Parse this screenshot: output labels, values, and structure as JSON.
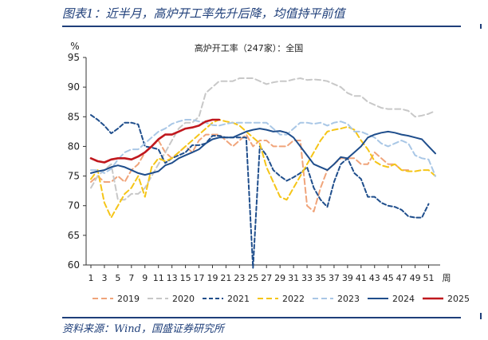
{
  "figure": {
    "title": "图表1：近半月，高炉开工率先升后降，均值持平前值",
    "source": "资料来源：Wind，国盛证券研究所"
  },
  "chart_data": {
    "type": "line",
    "title": "高炉开工率（247家）：全国",
    "ylabel": "%",
    "xlabel": "周",
    "ylim": [
      60,
      95
    ],
    "yticks": [
      60,
      65,
      70,
      75,
      80,
      85,
      90,
      95
    ],
    "xlim": [
      1,
      52
    ],
    "xticks": [
      1,
      3,
      5,
      7,
      9,
      11,
      13,
      15,
      17,
      19,
      21,
      23,
      25,
      27,
      29,
      31,
      33,
      35,
      37,
      39,
      41,
      43,
      45,
      47,
      49,
      51
    ],
    "grid": false,
    "legend": "bottom",
    "series": [
      {
        "name": "2019",
        "color": "#f0a47a",
        "dash": "7,4",
        "values": [
          74,
          75,
          74,
          74,
          75,
          74,
          76,
          77,
          79,
          80,
          81,
          79,
          78,
          79,
          80,
          79,
          81,
          82,
          82,
          82,
          81,
          80,
          81,
          82,
          80,
          81,
          81,
          80,
          80,
          80,
          81,
          81,
          70,
          69,
          73,
          76,
          77,
          78,
          78,
          78,
          77,
          77,
          79,
          78,
          77,
          77,
          76,
          76,
          null,
          null,
          null,
          null
        ]
      },
      {
        "name": "2020",
        "color": "#c8c8c8",
        "dash": "7,4",
        "values": [
          73,
          75,
          76,
          77,
          71,
          71,
          72,
          72,
          73,
          75,
          77,
          79,
          81,
          83,
          84,
          84,
          85,
          89,
          90,
          91,
          91,
          91,
          91.5,
          91.5,
          91.5,
          91,
          90.5,
          90.8,
          91,
          91,
          91.3,
          91.5,
          91.2,
          91.3,
          91.2,
          91,
          90.5,
          90,
          89,
          88.5,
          88.5,
          87.5,
          87,
          86.5,
          86.3,
          86.3,
          86.3,
          86,
          85,
          85.2,
          85.5,
          86
        ]
      },
      {
        "name": "2021",
        "color": "#1f4e8c",
        "dash": "5,3",
        "values": [
          85.3,
          84.5,
          83.5,
          82.2,
          83,
          84,
          84,
          83.7,
          80,
          79.8,
          79.5,
          77.2,
          78,
          78.5,
          79,
          80.2,
          80.2,
          80.5,
          81.8,
          81.8,
          81.5,
          81.5,
          81.5,
          81.5,
          59.5,
          80,
          78.5,
          76,
          75,
          74.2,
          74.8,
          75.5,
          76.5,
          73,
          71,
          69.8,
          74,
          77,
          78,
          75.5,
          74.5,
          71.5,
          71.5,
          70.5,
          70,
          69.8,
          69.3,
          68.2,
          68,
          68,
          70.3,
          null
        ]
      },
      {
        "name": "2022",
        "color": "#f5c518",
        "dash": "7,4",
        "values": [
          74.5,
          76,
          70.5,
          68,
          70,
          72,
          73,
          75,
          71.5,
          76.5,
          78,
          77.5,
          78,
          79,
          80,
          81,
          82,
          83,
          84,
          84.5,
          84.2,
          84,
          83.5,
          82.5,
          81.5,
          80.5,
          76.5,
          74,
          71.5,
          71,
          73,
          75,
          77,
          79,
          81,
          82.5,
          82.8,
          83,
          83.3,
          82.8,
          81,
          79.5,
          77.5,
          76.8,
          76.5,
          77,
          76,
          75.8,
          75.8,
          76,
          76,
          75
        ]
      },
      {
        "name": "2023",
        "color": "#a9c7e6",
        "dash": "7,4",
        "values": [
          76,
          76,
          75.5,
          76.2,
          77.8,
          79,
          79.5,
          79.5,
          80.5,
          81.5,
          82.5,
          83,
          83.8,
          84.2,
          84.5,
          84.5,
          84.2,
          84,
          83.6,
          83.5,
          83.8,
          84,
          84,
          84,
          84,
          84,
          84,
          83,
          82,
          82,
          83,
          84,
          84,
          83.8,
          84,
          83.5,
          84,
          84.2,
          83.8,
          82.5,
          82.5,
          82,
          81.5,
          80.5,
          80,
          80.5,
          81,
          80.5,
          78.5,
          78,
          77.8,
          75
        ]
      },
      {
        "name": "2024",
        "color": "#1f4e8c",
        "dash": "",
        "values": [
          75.5,
          75.8,
          76,
          76.5,
          76.8,
          76.5,
          76,
          75.5,
          75.2,
          75.5,
          75.8,
          76.8,
          77.2,
          78,
          78.5,
          79,
          79.5,
          80.5,
          81.2,
          81.5,
          81.5,
          81.5,
          82,
          82.5,
          82.8,
          83,
          82.8,
          82.5,
          82.6,
          82.3,
          81.5,
          80,
          78.5,
          77,
          76.5,
          76,
          77,
          78.2,
          78,
          79,
          80,
          81.5,
          82,
          82.3,
          82.5,
          82.3,
          82,
          81.8,
          81.5,
          81.2,
          80,
          78.8
        ]
      },
      {
        "name": "2025",
        "color": "#c0181e",
        "dash": "",
        "values": [
          78,
          77.5,
          77.3,
          77.8,
          78,
          78,
          77.8,
          78.3,
          79,
          80,
          81.2,
          82,
          82,
          82.5,
          83,
          83.2,
          83.5,
          84.2,
          84.5,
          84.5,
          null,
          null,
          null,
          null,
          null,
          null,
          null,
          null,
          null,
          null,
          null,
          null,
          null,
          null,
          null,
          null,
          null,
          null,
          null,
          null,
          null,
          null,
          null,
          null,
          null,
          null,
          null,
          null,
          null,
          null,
          null,
          null
        ]
      }
    ]
  }
}
